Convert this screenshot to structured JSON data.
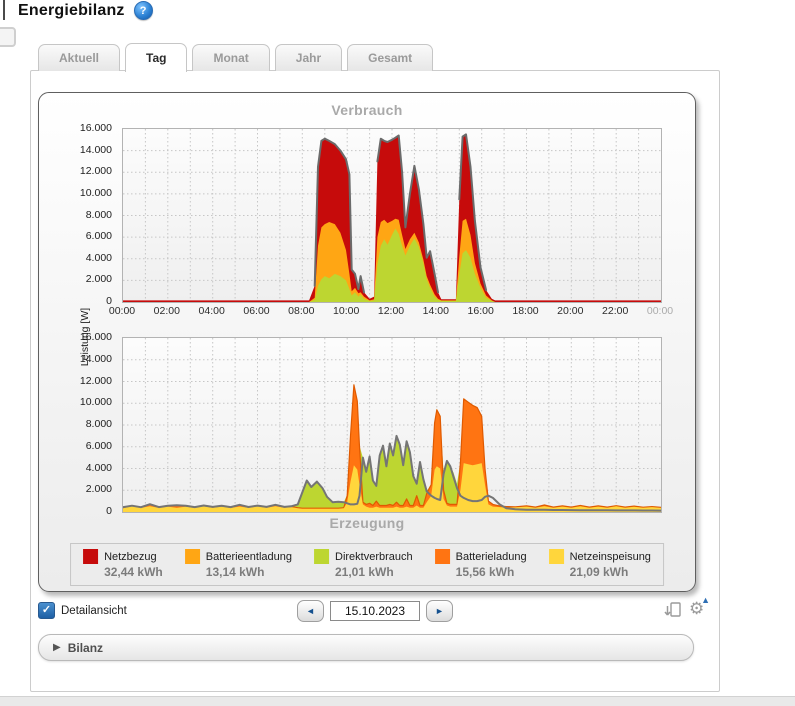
{
  "page": {
    "title": "Energiebilanz"
  },
  "icons": {
    "help": "?",
    "check": "✓",
    "prev": "◄",
    "next": "►",
    "gear": "⚙",
    "gear_arrow": "▲",
    "caret": "▶"
  },
  "tabs": [
    {
      "label": "Aktuell",
      "active": false
    },
    {
      "label": "Tag",
      "active": true
    },
    {
      "label": "Monat",
      "active": false
    },
    {
      "label": "Jahr",
      "active": false
    },
    {
      "label": "Gesamt",
      "active": false
    }
  ],
  "controls": {
    "detail_label": "Detailansicht",
    "date_value": "15.10.2023",
    "bilanz_label": "Bilanz"
  },
  "legend": [
    {
      "label": "Netzbezug",
      "value": "32,44 kWh",
      "color": "#c60b0b"
    },
    {
      "label": "Batterieentladung",
      "value": "13,14 kWh",
      "color": "#ffa614"
    },
    {
      "label": "Direktverbrauch",
      "value": "21,01 kWh",
      "color": "#bdd631"
    },
    {
      "label": "Batterieladung",
      "value": "15,56 kWh",
      "color": "#ff7412"
    },
    {
      "label": "Netzeinspeisung",
      "value": "21,09 kWh",
      "color": "#ffd63c"
    }
  ],
  "chart_data": [
    {
      "type": "area",
      "title": "Verbrauch",
      "ylabel": "Leistung [W]",
      "ylim": [
        0,
        16000
      ],
      "ystep": 2000,
      "xlim_hours": [
        0,
        24
      ],
      "grid": true,
      "x_ticks": [
        "00:00",
        "02:00",
        "04:00",
        "06:00",
        "08:00",
        "10:00",
        "12:00",
        "14:00",
        "16:00",
        "18:00",
        "20:00",
        "22:00",
        "00:00"
      ],
      "x_tick_last_muted": true,
      "series": [
        {
          "name": "Direktverbrauch",
          "color": "#bdd631"
        },
        {
          "name": "Batterieentladung",
          "color": "#ffa614"
        },
        {
          "name": "Netzbezug",
          "color": "#c60b0b"
        }
      ],
      "outline_color": "#6b6b6b",
      "points_format": [
        "hour",
        "direktverbrauch_top",
        "batterieentladung_top",
        "total"
      ],
      "points": [
        [
          0,
          0,
          0,
          150
        ],
        [
          8.3,
          0,
          0,
          150
        ],
        [
          8.55,
          200,
          400,
          1500
        ],
        [
          8.7,
          1500,
          5200,
          12500
        ],
        [
          8.85,
          2100,
          6900,
          14900
        ],
        [
          9.0,
          2400,
          7200,
          15100
        ],
        [
          9.2,
          2200,
          7400,
          14900
        ],
        [
          9.45,
          2600,
          7200,
          14600
        ],
        [
          9.7,
          2400,
          6400,
          14000
        ],
        [
          9.95,
          2000,
          4800,
          13200
        ],
        [
          10.1,
          1200,
          2600,
          11800
        ],
        [
          10.2,
          600,
          1000,
          3000
        ],
        [
          10.35,
          900,
          1300,
          2600
        ],
        [
          10.5,
          500,
          800,
          1200
        ],
        [
          10.6,
          700,
          900,
          2400
        ],
        [
          10.75,
          300,
          500,
          900
        ],
        [
          11.0,
          100,
          150,
          300
        ],
        [
          11.2,
          150,
          250,
          500
        ],
        [
          11.35,
          3500,
          6000,
          13000
        ],
        [
          11.5,
          5200,
          7400,
          15100
        ],
        [
          11.65,
          5800,
          7600,
          14900
        ],
        [
          11.8,
          5300,
          7300,
          14800
        ],
        [
          12.0,
          6200,
          7500,
          15000
        ],
        [
          12.15,
          6800,
          7700,
          15200
        ],
        [
          12.3,
          6300,
          7600,
          15400
        ],
        [
          12.45,
          5200,
          6200,
          12000
        ],
        [
          12.6,
          4300,
          4900,
          6900
        ],
        [
          12.8,
          5200,
          5800,
          10000
        ],
        [
          13.0,
          5900,
          6400,
          12600
        ],
        [
          13.2,
          5100,
          5500,
          10400
        ],
        [
          13.4,
          3600,
          3900,
          7200
        ],
        [
          13.55,
          2100,
          2400,
          4100
        ],
        [
          13.7,
          1300,
          1600,
          4700
        ],
        [
          13.9,
          500,
          700,
          2600
        ],
        [
          14.05,
          200,
          300,
          900
        ],
        [
          14.2,
          100,
          150,
          250
        ],
        [
          14.85,
          100,
          150,
          250
        ],
        [
          15.0,
          2600,
          4200,
          9500
        ],
        [
          15.15,
          4500,
          7500,
          15300
        ],
        [
          15.3,
          4800,
          7700,
          15500
        ],
        [
          15.5,
          4100,
          6200,
          12500
        ],
        [
          15.7,
          2600,
          3600,
          7500
        ],
        [
          15.95,
          1300,
          1700,
          3200
        ],
        [
          16.2,
          400,
          600,
          1100
        ],
        [
          16.45,
          100,
          150,
          300
        ],
        [
          16.6,
          0,
          0,
          150
        ],
        [
          24,
          0,
          0,
          150
        ]
      ]
    },
    {
      "type": "area",
      "title": "Erzeugung",
      "ylim": [
        0,
        16000
      ],
      "ystep": 2000,
      "xlim_hours": [
        0,
        24
      ],
      "grid": true,
      "series": [
        {
          "name": "Netzeinspeisung",
          "color": "#ffd63c"
        },
        {
          "name": "Batterieladung",
          "color": "#ff7412"
        },
        {
          "name": "Direktverbrauch",
          "color": "#bdd631"
        }
      ],
      "orange_edge_color": "#e05a00",
      "line_series": {
        "name": "pv-outline",
        "color": "#757575"
      },
      "points_format": [
        "hour",
        "netzeinspeisung_top",
        "batterieladung_top",
        "direktverbrauch_top",
        "gray_line"
      ],
      "points": [
        [
          0,
          350,
          420,
          420,
          440
        ],
        [
          0.4,
          520,
          560,
          560,
          580
        ],
        [
          0.8,
          380,
          420,
          420,
          440
        ],
        [
          1.2,
          520,
          700,
          700,
          720
        ],
        [
          1.6,
          380,
          430,
          430,
          450
        ],
        [
          2.0,
          500,
          560,
          560,
          580
        ],
        [
          2.4,
          380,
          600,
          600,
          620
        ],
        [
          2.8,
          500,
          550,
          550,
          570
        ],
        [
          3.2,
          380,
          430,
          430,
          450
        ],
        [
          3.6,
          520,
          580,
          580,
          600
        ],
        [
          4.0,
          400,
          450,
          450,
          470
        ],
        [
          4.4,
          500,
          560,
          560,
          580
        ],
        [
          4.8,
          380,
          430,
          430,
          450
        ],
        [
          5.2,
          500,
          640,
          640,
          660
        ],
        [
          5.6,
          400,
          440,
          440,
          460
        ],
        [
          6.0,
          520,
          570,
          570,
          590
        ],
        [
          6.4,
          400,
          450,
          450,
          470
        ],
        [
          6.8,
          520,
          640,
          640,
          660
        ],
        [
          7.2,
          400,
          450,
          450,
          470
        ],
        [
          7.5,
          450,
          500,
          500,
          520
        ],
        [
          7.8,
          350,
          400,
          700,
          700
        ],
        [
          8.0,
          300,
          350,
          1800,
          1800
        ],
        [
          8.2,
          300,
          350,
          2900,
          2900
        ],
        [
          8.4,
          300,
          350,
          2300,
          2300
        ],
        [
          8.65,
          300,
          350,
          2800,
          2800
        ],
        [
          8.9,
          300,
          350,
          2200,
          2200
        ],
        [
          9.1,
          300,
          350,
          1400,
          1400
        ],
        [
          9.35,
          300,
          350,
          900,
          900
        ],
        [
          9.6,
          300,
          350,
          950,
          950
        ],
        [
          9.85,
          350,
          400,
          900,
          900
        ],
        [
          10.0,
          900,
          1500,
          1600,
          800
        ],
        [
          10.15,
          2800,
          7000,
          7100,
          700
        ],
        [
          10.3,
          4300,
          11700,
          11800,
          700
        ],
        [
          10.45,
          3900,
          10200,
          10300,
          750
        ],
        [
          10.55,
          2500,
          6000,
          6100,
          1500
        ],
        [
          10.7,
          700,
          900,
          5000,
          5000
        ],
        [
          10.85,
          500,
          700,
          3700,
          3700
        ],
        [
          11.0,
          400,
          800,
          5100,
          5100
        ],
        [
          11.15,
          400,
          600,
          2900,
          2900
        ],
        [
          11.3,
          500,
          1000,
          2400,
          2400
        ],
        [
          11.45,
          400,
          600,
          5200,
          5200
        ],
        [
          11.6,
          400,
          600,
          6100,
          6100
        ],
        [
          11.75,
          400,
          600,
          4200,
          4200
        ],
        [
          11.9,
          400,
          700,
          6300,
          6300
        ],
        [
          12.05,
          400,
          600,
          5200,
          5200
        ],
        [
          12.2,
          500,
          900,
          7000,
          7000
        ],
        [
          12.35,
          400,
          600,
          6200,
          6200
        ],
        [
          12.5,
          400,
          600,
          4300,
          4300
        ],
        [
          12.65,
          500,
          1200,
          6500,
          6500
        ],
        [
          12.8,
          400,
          600,
          5500,
          5500
        ],
        [
          12.95,
          400,
          600,
          3300,
          3300
        ],
        [
          13.1,
          600,
          1500,
          2600,
          2600
        ],
        [
          13.25,
          400,
          600,
          4600,
          4600
        ],
        [
          13.4,
          400,
          600,
          3000,
          3000
        ],
        [
          13.55,
          900,
          1700,
          1900,
          1900
        ],
        [
          13.75,
          1500,
          2500,
          2600,
          1500
        ],
        [
          13.9,
          3900,
          8200,
          8300,
          1300
        ],
        [
          14.0,
          4200,
          9400,
          9500,
          1200
        ],
        [
          14.15,
          4000,
          8800,
          8900,
          1100
        ],
        [
          14.3,
          1200,
          2000,
          3500,
          3500
        ],
        [
          14.45,
          600,
          800,
          4700,
          4700
        ],
        [
          14.6,
          500,
          700,
          4200,
          4200
        ],
        [
          14.75,
          500,
          700,
          3600,
          3200
        ],
        [
          14.9,
          500,
          700,
          2600,
          2200
        ],
        [
          15.05,
          2000,
          4500,
          4600,
          1500
        ],
        [
          15.2,
          4500,
          10400,
          10450,
          1300
        ],
        [
          15.4,
          4400,
          10100,
          10150,
          1100
        ],
        [
          15.6,
          4300,
          9800,
          9850,
          1000
        ],
        [
          15.8,
          4400,
          9600,
          9650,
          1000
        ],
        [
          16.0,
          4500,
          8800,
          8850,
          1100
        ],
        [
          16.15,
          2500,
          4000,
          4050,
          1400
        ],
        [
          16.3,
          700,
          1000,
          1050,
          1500
        ],
        [
          16.5,
          500,
          700,
          720,
          1300
        ],
        [
          16.8,
          450,
          550,
          570,
          700
        ],
        [
          17.1,
          400,
          500,
          520,
          350
        ],
        [
          17.5,
          420,
          480,
          500,
          250
        ],
        [
          18.0,
          500,
          560,
          570,
          210
        ],
        [
          18.4,
          400,
          450,
          460,
          200
        ],
        [
          18.8,
          520,
          640,
          650,
          200
        ],
        [
          19.2,
          400,
          450,
          460,
          185
        ],
        [
          19.6,
          500,
          560,
          570,
          180
        ],
        [
          20.0,
          400,
          450,
          460,
          175
        ],
        [
          20.4,
          520,
          600,
          610,
          170
        ],
        [
          20.8,
          400,
          450,
          460,
          165
        ],
        [
          21.2,
          500,
          560,
          570,
          160
        ],
        [
          21.6,
          400,
          450,
          460,
          155
        ],
        [
          22.0,
          520,
          580,
          590,
          150
        ],
        [
          22.4,
          400,
          450,
          460,
          150
        ],
        [
          22.8,
          480,
          540,
          550,
          145
        ],
        [
          23.2,
          400,
          440,
          450,
          140
        ],
        [
          23.6,
          450,
          500,
          510,
          135
        ],
        [
          24,
          380,
          420,
          430,
          130
        ]
      ]
    }
  ]
}
